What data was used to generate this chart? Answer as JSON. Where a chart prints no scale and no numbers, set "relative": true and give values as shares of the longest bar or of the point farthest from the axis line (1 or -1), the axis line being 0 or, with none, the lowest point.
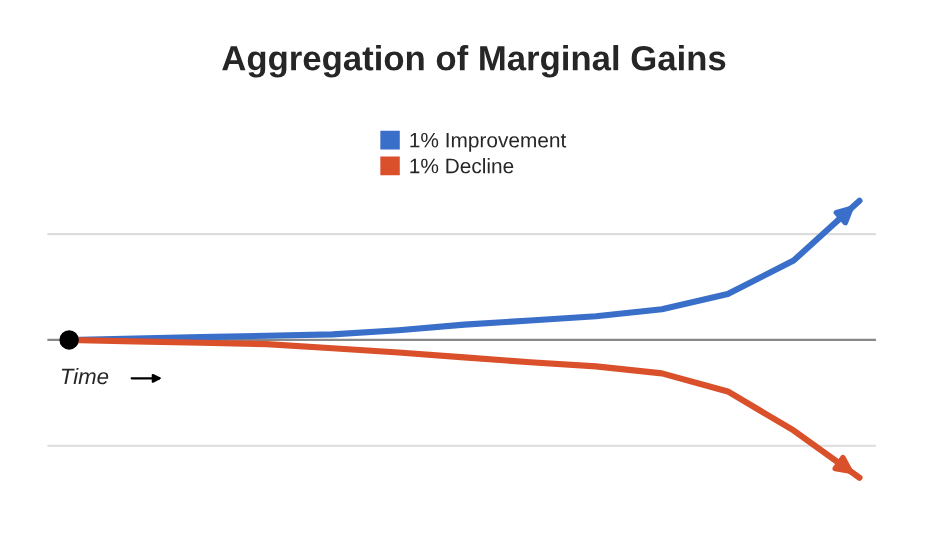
{
  "chart_data": {
    "type": "line",
    "title": "Aggregation of Marginal Gains",
    "relative": true,
    "legend": "top",
    "categories": [
      null,
      null,
      null,
      null,
      null,
      null,
      null,
      null,
      null,
      null,
      null,
      null,
      null
    ],
    "series": [
      {
        "name": "1% Improvement",
        "color": "#3a6fc9",
        "values": [
          0,
          0.01,
          0.02,
          0.03,
          0.04,
          0.07,
          0.11,
          0.14,
          0.17,
          0.22,
          0.33,
          0.57,
          1
        ]
      },
      {
        "name": "1% Decline",
        "color": "#d9502a",
        "values": [
          0,
          -0.01,
          -0.02,
          -0.03,
          -0.06,
          -0.09,
          -0.125,
          -0.16,
          -0.19,
          -0.24,
          -0.37,
          -0.65,
          -0.99
        ]
      }
    ],
    "ref_lines": [
      {
        "axis": "y",
        "value": 0.76,
        "color": "#dddddd"
      },
      {
        "axis": "y",
        "value": 0,
        "color": "#888888"
      },
      {
        "axis": "y",
        "value": -0.76,
        "color": "#dddddd"
      }
    ],
    "annotations": [
      "Time"
    ]
  }
}
